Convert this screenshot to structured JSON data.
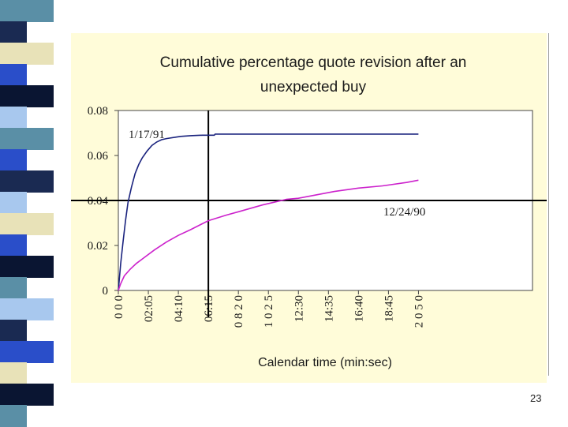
{
  "slide": {
    "page_number": "23",
    "stripe_colors": [
      "#5a8fa6",
      "#1a2a52",
      "#e8e2b8",
      "#2a4ec9",
      "#0a1532",
      "#a8c8ee",
      "#5a8fa6",
      "#2a4ec9",
      "#1a2a52",
      "#a8c8ee",
      "#e8e2b8",
      "#2a4ec9",
      "#0a1532",
      "#5a8fa6",
      "#a8c8ee",
      "#1a2a52",
      "#2a4ec9",
      "#e8e2b8",
      "#0a1532",
      "#5a8fa6"
    ]
  },
  "chart_data": {
    "type": "line",
    "title": "Cumulative percentage quote revision after an unexpected buy",
    "title_lines": [
      "Cumulative percentage quote revision after an",
      "unexpected buy"
    ],
    "xlabel": "Calendar time (min:sec)",
    "ylabel": "",
    "xlim": [
      0,
      1725
    ],
    "ylim": [
      0,
      0.08
    ],
    "y_ticks": [
      0,
      0.02,
      0.04,
      0.06,
      0.08
    ],
    "y_tick_labels": [
      "0",
      "0.02",
      "0.04",
      "0.06",
      "0.08"
    ],
    "x_ticks": [
      {
        "value": 0,
        "label": "0 0 0"
      },
      {
        "value": 125,
        "label": "02:05"
      },
      {
        "value": 250,
        "label": "04:10"
      },
      {
        "value": 375,
        "label": "06:15"
      },
      {
        "value": 500,
        "label": "0 8 2 0"
      },
      {
        "value": 625,
        "label": "1 0 2 5"
      },
      {
        "value": 750,
        "label": "12:30"
      },
      {
        "value": 875,
        "label": "14:35"
      },
      {
        "value": 1000,
        "label": "16:40"
      },
      {
        "value": 1125,
        "label": "18:45"
      },
      {
        "value": 1250,
        "label": "2 0 5 0"
      }
    ],
    "reference_lines": {
      "horizontal_y": 0.04,
      "vertical_x": 375
    },
    "series": [
      {
        "name": "1/17/91",
        "color": "#1a237e",
        "x": [
          0,
          10,
          20,
          30,
          40,
          55,
          70,
          85,
          100,
          120,
          140,
          160,
          180,
          200,
          230,
          260,
          300,
          350,
          400,
          403,
          500,
          600,
          700,
          800,
          900,
          1000,
          1100,
          1200,
          1250
        ],
        "y": [
          0,
          0.012,
          0.022,
          0.031,
          0.039,
          0.046,
          0.052,
          0.056,
          0.059,
          0.062,
          0.0645,
          0.066,
          0.067,
          0.0675,
          0.068,
          0.0685,
          0.0688,
          0.069,
          0.069,
          0.0695,
          0.0695,
          0.0695,
          0.0695,
          0.0695,
          0.0695,
          0.0695,
          0.0695,
          0.0695,
          0.0695
        ]
      },
      {
        "name": "12/24/90",
        "color": "#cc22cc",
        "x": [
          0,
          10,
          25,
          50,
          75,
          100,
          150,
          200,
          250,
          300,
          375,
          450,
          500,
          600,
          700,
          750,
          800,
          900,
          1000,
          1100,
          1200,
          1250
        ],
        "y": [
          0,
          0.003,
          0.0065,
          0.0095,
          0.012,
          0.014,
          0.018,
          0.0215,
          0.0245,
          0.027,
          0.031,
          0.0335,
          0.035,
          0.038,
          0.0405,
          0.041,
          0.042,
          0.044,
          0.0455,
          0.0465,
          0.048,
          0.049
        ]
      }
    ],
    "annotations": [
      {
        "text": "1/17/91",
        "series": "1/17/91"
      },
      {
        "text": "12/24/90",
        "series": "12/24/90"
      }
    ]
  }
}
